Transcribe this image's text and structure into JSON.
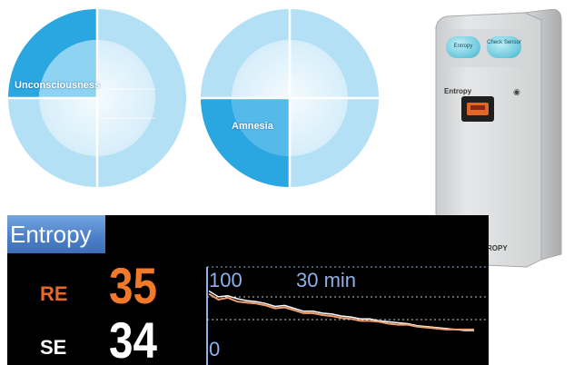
{
  "dials": [
    {
      "label": "Unconsciousness",
      "highlight": "top-left"
    },
    {
      "label": "Amnesia",
      "highlight": "bottom-left"
    }
  ],
  "colors": {
    "dial_outer": "#a9dcf2",
    "dial_inner": "#d9f0fb",
    "dial_center": "#eaf7fd",
    "dial_highlight": "#2aa6e0",
    "monitor_bg": "#000000",
    "monitor_title_bg": "#4b7ec8",
    "re_color": "#f07a2a",
    "se_color": "#ffffff",
    "trend_text": "#8fb0e8"
  },
  "module": {
    "button_1": "Entropy",
    "button_2": "Check Sensor",
    "title": "Entropy",
    "brand": "E-ENTROPY",
    "logo_icon": "brand-logo-icon"
  },
  "monitor": {
    "title": "Entropy",
    "re": {
      "label": "RE",
      "value": "35"
    },
    "se": {
      "label": "SE",
      "value": "34"
    },
    "trend": {
      "max_label": "100",
      "min_label": "0",
      "span_label": "30 min",
      "re_trend": [
        72,
        66,
        68,
        64,
        63,
        62,
        60,
        57,
        58,
        55,
        52,
        52,
        50,
        49,
        47,
        46,
        44,
        44,
        43,
        41,
        40,
        40,
        38,
        37,
        36,
        35,
        35,
        35,
        35
      ],
      "se_trend": [
        75,
        69,
        70,
        67,
        65,
        64,
        62,
        59,
        60,
        57,
        54,
        54,
        52,
        51,
        49,
        48,
        46,
        46,
        44,
        43,
        42,
        41,
        39,
        38,
        37,
        36,
        35,
        34,
        34
      ]
    }
  }
}
